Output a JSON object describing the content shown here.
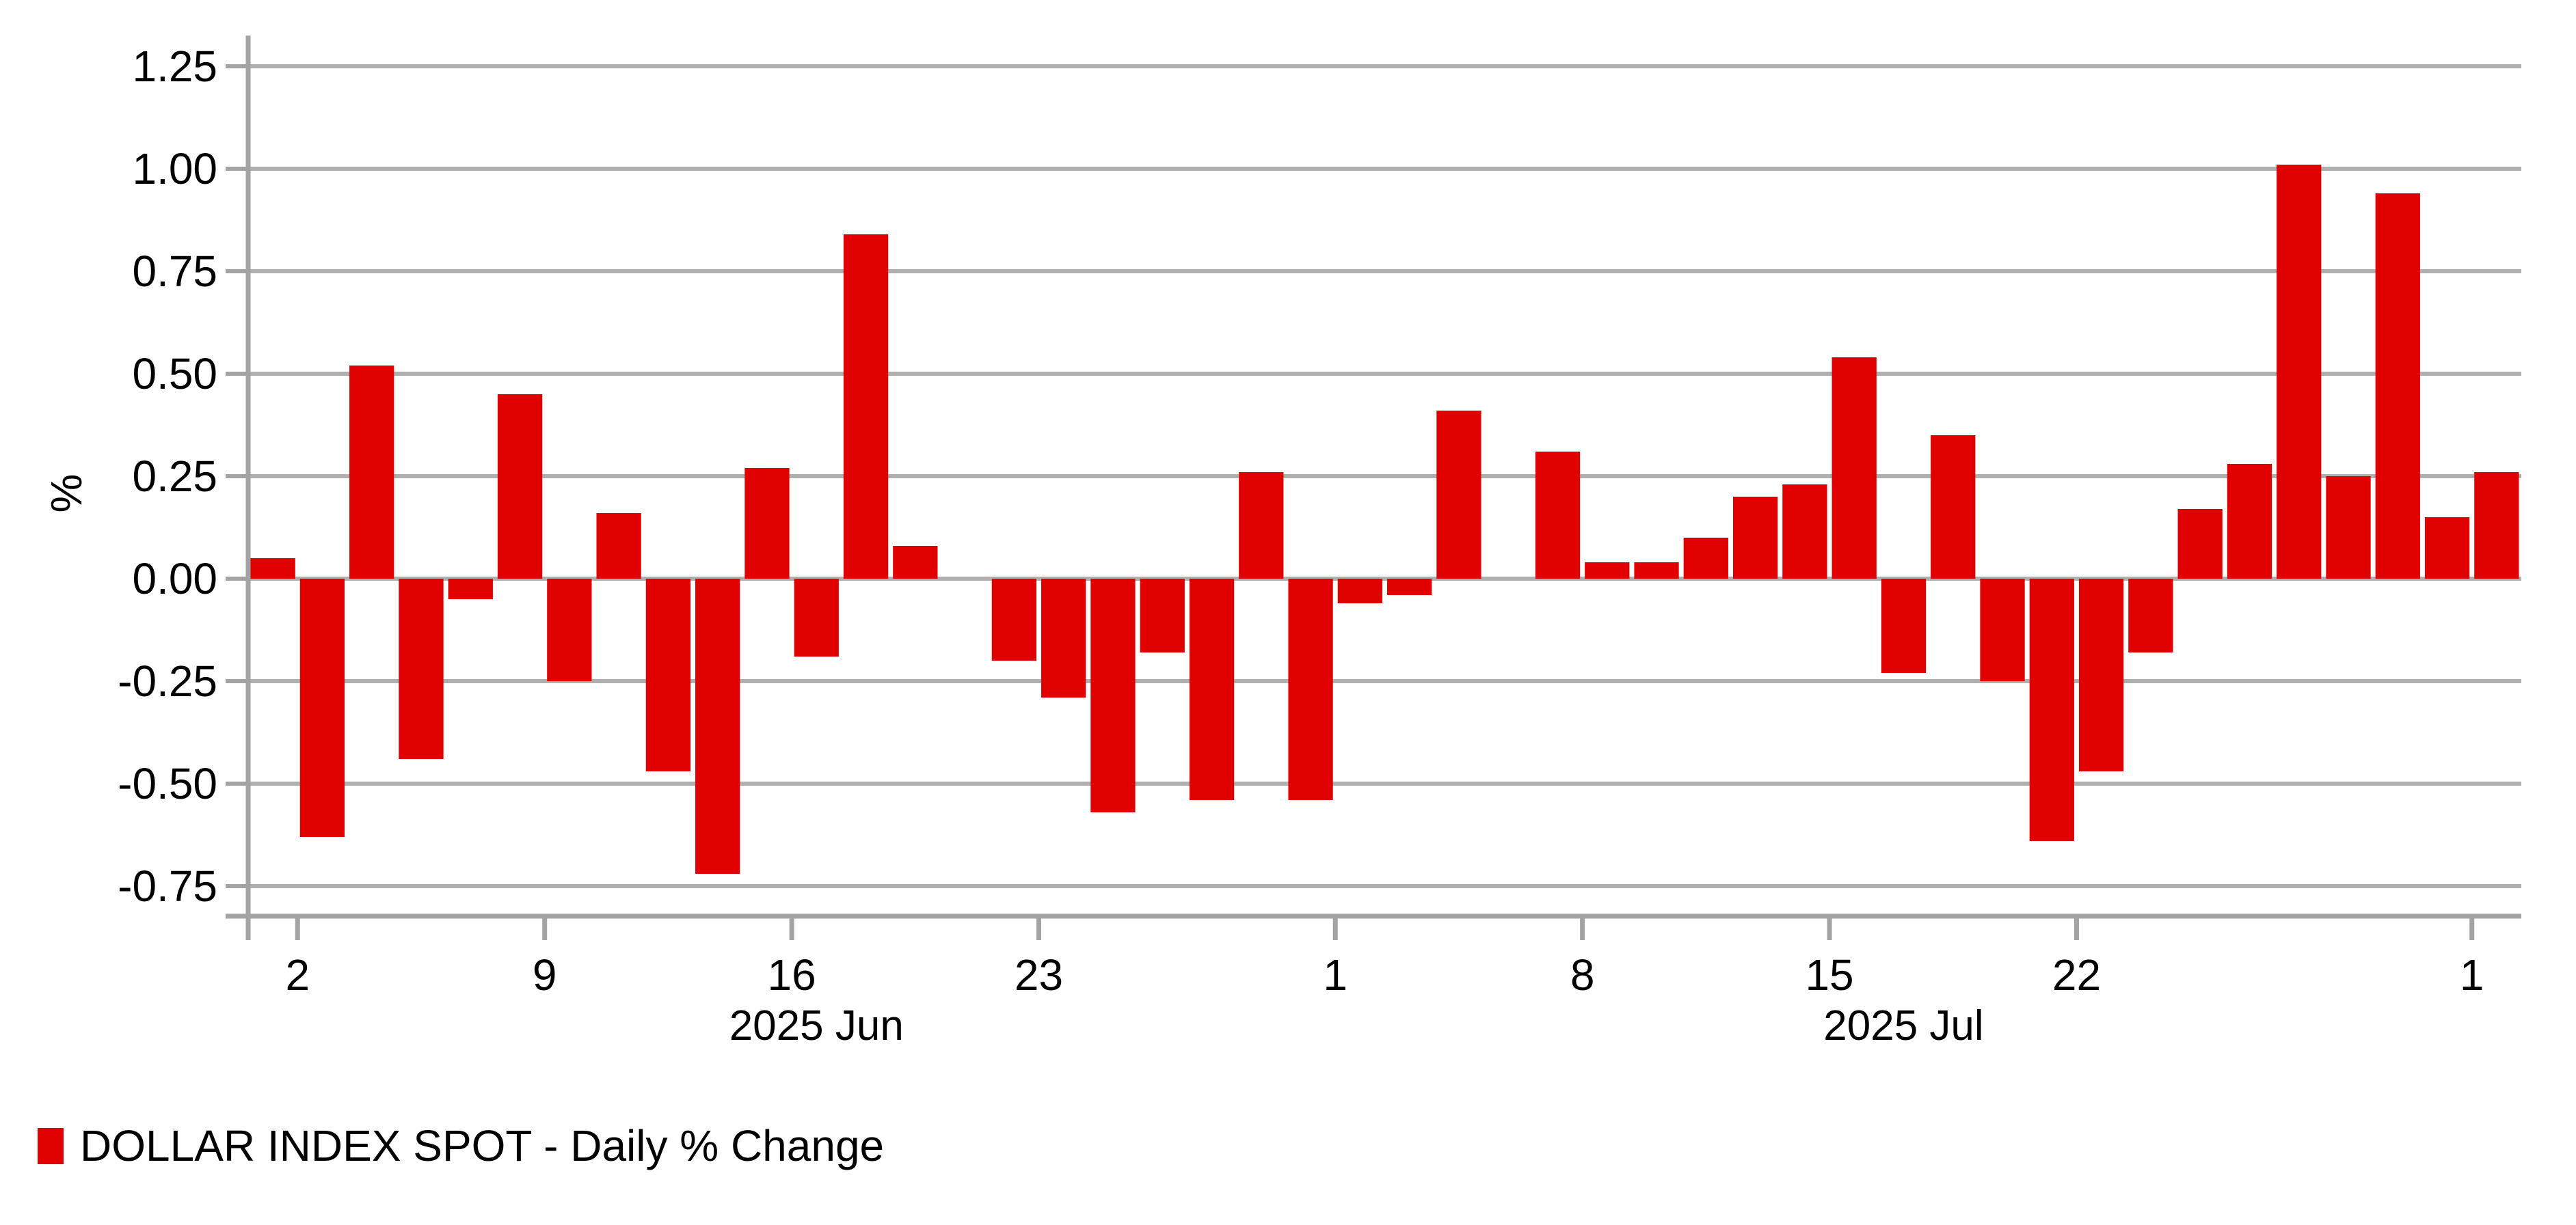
{
  "chart_data": {
    "type": "bar",
    "title": "",
    "ylabel": "%",
    "xlabel": "",
    "grid": true,
    "legend_position": "bottom-left",
    "ylim": [
      -0.82,
      1.33
    ],
    "yticks": [
      1.25,
      1.0,
      0.75,
      0.5,
      0.25,
      0.0,
      -0.25,
      -0.5,
      -0.75
    ],
    "series": [
      {
        "name": "DOLLAR INDEX SPOT - Daily % Change",
        "categories": [
          "May 30",
          "Jun 2",
          "Jun 3",
          "Jun 4",
          "Jun 5",
          "Jun 6",
          "Jun 9",
          "Jun 10",
          "Jun 11",
          "Jun 12",
          "Jun 13",
          "Jun 16",
          "Jun 17",
          "Jun 18",
          "Jun 19",
          "Jun 20",
          "Jun 23",
          "Jun 24",
          "Jun 25",
          "Jun 26",
          "Jun 27",
          "Jun 30",
          "Jul 1",
          "Jul 2",
          "Jul 3",
          "Jul 4",
          "Jul 7",
          "Jul 8",
          "Jul 9",
          "Jul 10",
          "Jul 11",
          "Jul 14",
          "Jul 15",
          "Jul 16",
          "Jul 17",
          "Jul 18",
          "Jul 21",
          "Jul 22",
          "Jul 23",
          "Jul 24",
          "Jul 25",
          "Jul 28",
          "Jul 29",
          "Jul 30",
          "Jul 31",
          "Aug 1"
        ],
        "values": [
          0.05,
          -0.63,
          0.52,
          -0.44,
          -0.05,
          0.45,
          -0.25,
          0.16,
          -0.47,
          -0.72,
          0.27,
          -0.19,
          0.84,
          0.08,
          null,
          -0.2,
          -0.29,
          -0.57,
          -0.18,
          -0.54,
          0.26,
          -0.54,
          -0.06,
          -0.04,
          0.41,
          null,
          0.31,
          0.04,
          0.04,
          0.1,
          0.2,
          0.23,
          0.54,
          -0.23,
          0.35,
          -0.25,
          -0.64,
          -0.47,
          -0.18,
          0.17,
          0.28,
          1.01,
          0.25,
          0.94,
          0.15,
          0.26
        ]
      }
    ],
    "xticks": [
      {
        "label": "2",
        "date": "Jun 2"
      },
      {
        "label": "9",
        "date": "Jun 9"
      },
      {
        "label": "16",
        "date": "Jun 16"
      },
      {
        "label": "23",
        "date": "Jun 23"
      },
      {
        "label": "1",
        "date": "Jul 1"
      },
      {
        "label": "8",
        "date": "Jul 8"
      },
      {
        "label": "15",
        "date": "Jul 15"
      },
      {
        "label": "22",
        "date": "Jul 22"
      },
      {
        "label": "1",
        "date": "Aug 1"
      }
    ],
    "month_labels": [
      {
        "label": "2025 Jun",
        "from": "Jun 2",
        "to": "Jul 1"
      },
      {
        "label": "2025 Jul",
        "from": "Jul 1",
        "to": "Aug 1"
      }
    ],
    "bar_color": "#E00000",
    "grid_color": "#AFAFAF",
    "axis_color": "#A3A3A3",
    "text_color": "#000000"
  },
  "legend": {
    "label": "DOLLAR INDEX SPOT - Daily % Change",
    "swatch_color": "#E00000"
  }
}
